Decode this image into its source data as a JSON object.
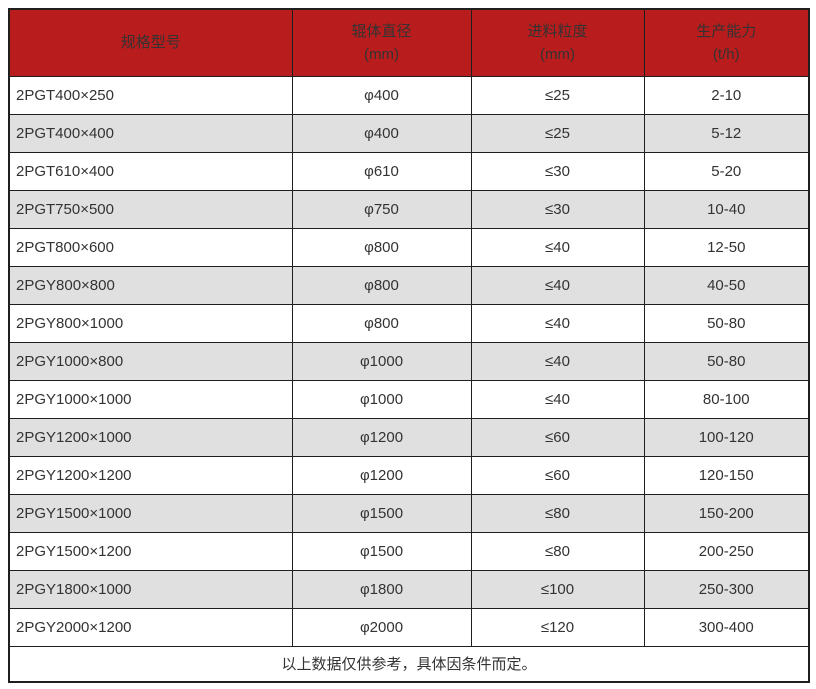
{
  "table": {
    "headers": [
      {
        "label": "规格型号",
        "unit": ""
      },
      {
        "label": "辊体直径",
        "unit": "(mm)"
      },
      {
        "label": "进料粒度",
        "unit": "(mm)"
      },
      {
        "label": "生产能力",
        "unit": "(t/h)"
      }
    ],
    "rows": [
      {
        "model": "2PGT400×250",
        "diameter": "φ400",
        "feed_size": "≤25",
        "capacity": "2-10"
      },
      {
        "model": "2PGT400×400",
        "diameter": "φ400",
        "feed_size": "≤25",
        "capacity": "5-12"
      },
      {
        "model": "2PGT610×400",
        "diameter": "φ610",
        "feed_size": "≤30",
        "capacity": "5-20"
      },
      {
        "model": "2PGT750×500",
        "diameter": "φ750",
        "feed_size": "≤30",
        "capacity": "10-40"
      },
      {
        "model": "2PGT800×600",
        "diameter": "φ800",
        "feed_size": "≤40",
        "capacity": "12-50"
      },
      {
        "model": "2PGY800×800",
        "diameter": "φ800",
        "feed_size": "≤40",
        "capacity": "40-50"
      },
      {
        "model": "2PGY800×1000",
        "diameter": "φ800",
        "feed_size": "≤40",
        "capacity": "50-80"
      },
      {
        "model": "2PGY1000×800",
        "diameter": "φ1000",
        "feed_size": "≤40",
        "capacity": "50-80"
      },
      {
        "model": "2PGY1000×1000",
        "diameter": "φ1000",
        "feed_size": "≤40",
        "capacity": "80-100"
      },
      {
        "model": "2PGY1200×1000",
        "diameter": "φ1200",
        "feed_size": "≤60",
        "capacity": "100-120"
      },
      {
        "model": "2PGY1200×1200",
        "diameter": "φ1200",
        "feed_size": "≤60",
        "capacity": "120-150"
      },
      {
        "model": "2PGY1500×1000",
        "diameter": "φ1500",
        "feed_size": "≤80",
        "capacity": "150-200"
      },
      {
        "model": "2PGY1500×1200",
        "diameter": "φ1500",
        "feed_size": "≤80",
        "capacity": "200-250"
      },
      {
        "model": "2PGY1800×1000",
        "diameter": "φ1800",
        "feed_size": "≤100",
        "capacity": "250-300"
      },
      {
        "model": "2PGY2000×1200",
        "diameter": "φ2000",
        "feed_size": "≤120",
        "capacity": "300-400"
      }
    ],
    "footer_note": "以上数据仅供参考，具体因条件而定。"
  },
  "colors": {
    "header_bg": "#B91C1C",
    "header_text": "#FFFFFF",
    "row_alt_bg": "#E0E0E0",
    "border": "#1F1F1F",
    "text": "#333333"
  }
}
